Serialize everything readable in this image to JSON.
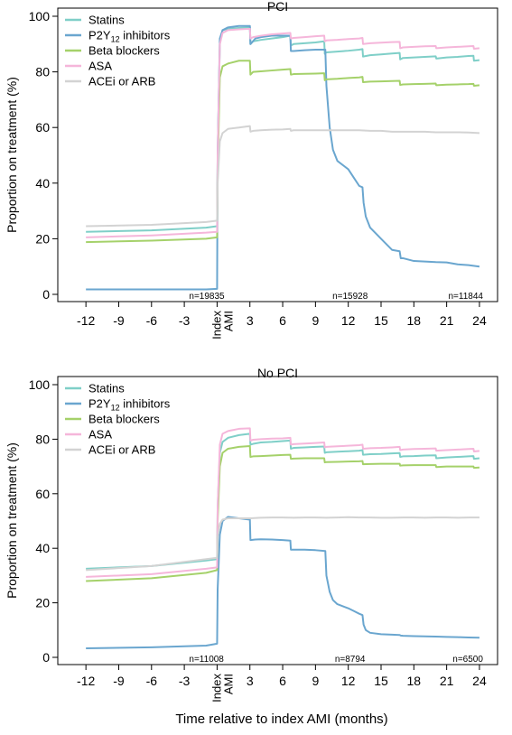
{
  "figure": {
    "xlabel": "Time relative to index AMI (months)"
  },
  "chart_data": [
    {
      "type": "line",
      "title": "PCI",
      "xlabel": "Time relative to index AMI (months)",
      "ylabel": "Proportion on treatment (%)",
      "xlim": [
        -13.5,
        24.5
      ],
      "ylim": [
        0,
        100
      ],
      "xticks": [
        -12,
        -9,
        -6,
        -3,
        0,
        3,
        6,
        9,
        12,
        15,
        18,
        21,
        24
      ],
      "xtick_labels": [
        "-12",
        "-9",
        "-6",
        "-3",
        "Index AMI",
        "3",
        "6",
        "9",
        "12",
        "15",
        "18",
        "21",
        "24"
      ],
      "yticks": [
        0,
        20,
        40,
        60,
        80,
        100
      ],
      "grid": false,
      "legend": "top-left",
      "annotations": [
        {
          "x": 0,
          "text": "n=19835"
        },
        {
          "x": 12,
          "text": "n=15928"
        },
        {
          "x": 24,
          "text": "n=11844"
        }
      ],
      "series": [
        {
          "name": "Statins",
          "color": "#7fcfc8",
          "x": [
            -12,
            -6,
            -1,
            0,
            0.05,
            0.25,
            0.5,
            1,
            2,
            3,
            3.05,
            3.3,
            4,
            5,
            6,
            6.7,
            6.75,
            7,
            8,
            9,
            9.8,
            9.85,
            10,
            11,
            12,
            13,
            13.3,
            13.35,
            14,
            15,
            16,
            16.7,
            16.75,
            17,
            18,
            19,
            20,
            20.05,
            21,
            22,
            23,
            23.45,
            23.5,
            24
          ],
          "y": [
            22.5,
            23,
            24,
            24.5,
            50,
            90,
            95,
            95.5,
            95.8,
            96,
            90,
            91,
            91.5,
            92,
            92.5,
            93,
            89.5,
            90,
            90.3,
            90.6,
            91,
            86.5,
            87,
            87.3,
            87.6,
            88,
            88.2,
            85.5,
            86,
            86.3,
            86.6,
            86.8,
            84.5,
            85,
            85.2,
            85.4,
            85.6,
            84.8,
            85.2,
            85.4,
            85.7,
            85.8,
            84,
            84.2
          ]
        },
        {
          "name": "P2Y12 inhibitors",
          "color": "#6aa6cf",
          "x": [
            -12,
            -6,
            -1,
            0,
            0.05,
            0.25,
            0.5,
            1,
            2,
            3,
            3.05,
            3.5,
            4,
            5,
            6,
            6.7,
            6.75,
            7,
            8,
            9,
            9.9,
            10,
            10.3,
            10.6,
            11,
            12,
            12.5,
            13,
            13.3,
            13.4,
            13.6,
            14,
            15,
            16,
            16.7,
            16.8,
            17,
            18,
            19,
            20,
            21,
            22,
            23,
            24
          ],
          "y": [
            1.8,
            1.8,
            1.8,
            2,
            50,
            92,
            95,
            96,
            96.5,
            96.5,
            90,
            92,
            92.5,
            93,
            93,
            93,
            87.5,
            87.5,
            87.8,
            88,
            88,
            75,
            60,
            52,
            48,
            45,
            42,
            39,
            38.5,
            33,
            28,
            24,
            20,
            16,
            15.5,
            13,
            13,
            12,
            11.8,
            11.6,
            11.5,
            10.8,
            10.5,
            10
          ]
        },
        {
          "name": "Beta blockers",
          "color": "#a5d16a",
          "x": [
            -12,
            -6,
            -1,
            0,
            0.05,
            0.25,
            0.5,
            1,
            2,
            3,
            3.05,
            3.3,
            4,
            5,
            6,
            6.7,
            6.75,
            7,
            8,
            9,
            9.8,
            9.85,
            10,
            11,
            12,
            13,
            13.3,
            13.35,
            14,
            15,
            16,
            16.7,
            16.75,
            17,
            18,
            19,
            20,
            20.05,
            21,
            22,
            23,
            23.45,
            23.5,
            24
          ],
          "y": [
            18.8,
            19.3,
            20,
            20.5,
            45,
            78,
            82,
            83,
            84,
            84,
            79,
            80,
            80.2,
            80.5,
            80.8,
            81,
            79,
            79.2,
            79.3,
            79.4,
            79.5,
            77,
            77.3,
            77.5,
            77.8,
            78,
            78.2,
            76.3,
            76.5,
            76.6,
            76.7,
            76.8,
            75.3,
            75.5,
            75.6,
            75.7,
            75.8,
            75.2,
            75.4,
            75.5,
            75.6,
            75.7,
            75,
            75.2
          ]
        },
        {
          "name": "ASA",
          "color": "#f5b6da",
          "x": [
            -12,
            -6,
            -1,
            0,
            0.05,
            0.25,
            0.5,
            1,
            2,
            3,
            3.05,
            3.3,
            4,
            5,
            6,
            6.7,
            6.75,
            7,
            8,
            9,
            9.8,
            9.85,
            10,
            11,
            12,
            13,
            13.3,
            13.35,
            14,
            15,
            16,
            16.7,
            16.75,
            17,
            18,
            19,
            20,
            20.05,
            21,
            22,
            23,
            23.45,
            23.5,
            24
          ],
          "y": [
            20.5,
            21.2,
            22.2,
            22.5,
            50,
            90,
            94,
            95,
            95.3,
            95.5,
            92,
            92.5,
            93,
            93.5,
            93.8,
            94,
            92,
            92.2,
            92.5,
            92.8,
            93,
            91,
            91.3,
            91.5,
            91.8,
            92,
            92.2,
            90,
            90.3,
            90.5,
            90.7,
            90.8,
            88.5,
            88.8,
            89,
            89.2,
            89.3,
            88.5,
            88.8,
            89,
            89.2,
            89.3,
            88.3,
            88.5
          ]
        },
        {
          "name": "ACEi or ARB",
          "color": "#d3d3d3",
          "x": [
            -12,
            -6,
            -1,
            0,
            0.05,
            0.25,
            0.5,
            1,
            2,
            3,
            3.05,
            3.3,
            4,
            5,
            6,
            6.7,
            6.75,
            7,
            8,
            9,
            10,
            11,
            12,
            13,
            14,
            15,
            16,
            17,
            18,
            19,
            20,
            21,
            22,
            23,
            24
          ],
          "y": [
            24.5,
            25,
            26,
            26.5,
            40,
            55,
            58,
            59.5,
            60,
            60.5,
            58.5,
            58.8,
            59,
            59.2,
            59.3,
            59.5,
            58.8,
            59,
            59,
            59,
            59,
            59,
            59,
            59,
            58.8,
            58.8,
            58.5,
            58.5,
            58.5,
            58.5,
            58.3,
            58.3,
            58.3,
            58.2,
            58
          ]
        }
      ]
    },
    {
      "type": "line",
      "title": "No PCI",
      "xlabel": "Time relative to index AMI (months)",
      "ylabel": "Proportion on treatment (%)",
      "xlim": [
        -13.5,
        24.5
      ],
      "ylim": [
        0,
        100
      ],
      "xticks": [
        -12,
        -9,
        -6,
        -3,
        0,
        3,
        6,
        9,
        12,
        15,
        18,
        21,
        24
      ],
      "xtick_labels": [
        "-12",
        "-9",
        "-6",
        "-3",
        "Index AMI",
        "3",
        "6",
        "9",
        "12",
        "15",
        "18",
        "21",
        "24"
      ],
      "yticks": [
        0,
        20,
        40,
        60,
        80,
        100
      ],
      "grid": false,
      "legend": "top-left",
      "annotations": [
        {
          "x": 0,
          "text": "n=11008"
        },
        {
          "x": 12,
          "text": "n=8794"
        },
        {
          "x": 24,
          "text": "n=6500"
        }
      ],
      "series": [
        {
          "name": "Statins",
          "color": "#7fcfc8",
          "x": [
            -12,
            -6,
            -1,
            0,
            0.05,
            0.25,
            0.5,
            1,
            2,
            3,
            3.05,
            3.3,
            4,
            5,
            6,
            6.7,
            6.75,
            7,
            8,
            9,
            9.8,
            9.85,
            10,
            11,
            12,
            13,
            13.3,
            13.35,
            14,
            15,
            16,
            16.7,
            16.75,
            17,
            18,
            19,
            20,
            20.05,
            21,
            22,
            23,
            23.45,
            23.5,
            24
          ],
          "y": [
            32.5,
            33.5,
            35.5,
            36,
            55,
            75,
            79,
            80.5,
            81.5,
            82,
            78,
            78.3,
            78.8,
            79,
            79.3,
            79.5,
            76.5,
            76.8,
            77,
            77.2,
            77.3,
            75,
            75.2,
            75.4,
            75.6,
            75.8,
            76,
            74.3,
            74.5,
            74.6,
            74.8,
            74.9,
            73.5,
            73.7,
            73.8,
            74,
            74.1,
            73,
            73.3,
            73.5,
            73.7,
            73.8,
            72.8,
            73
          ]
        },
        {
          "name": "P2Y12 inhibitors",
          "color": "#6aa6cf",
          "x": [
            -12,
            -6,
            -1,
            0,
            0.05,
            0.25,
            0.5,
            1,
            2,
            3,
            3.05,
            3.5,
            4,
            5,
            6,
            6.7,
            6.75,
            7,
            8,
            9,
            9.9,
            10,
            10.3,
            10.6,
            11,
            12,
            12.5,
            13,
            13.3,
            13.4,
            13.6,
            14,
            15,
            16,
            16.7,
            16.8,
            17,
            18,
            19,
            20,
            21,
            22,
            23,
            24
          ],
          "y": [
            3.3,
            3.7,
            4.3,
            5,
            25,
            45,
            50,
            51.5,
            51,
            50.5,
            43,
            43.2,
            43.3,
            43.2,
            43,
            42.8,
            39.5,
            39.5,
            39.5,
            39.3,
            39,
            30,
            24,
            21,
            19.5,
            18,
            17,
            16,
            15.5,
            12,
            10,
            9,
            8.5,
            8.3,
            8.2,
            8,
            7.9,
            7.8,
            7.7,
            7.6,
            7.5,
            7.4,
            7.3,
            7.2
          ]
        },
        {
          "name": "Beta blockers",
          "color": "#a5d16a",
          "x": [
            -12,
            -6,
            -1,
            0,
            0.05,
            0.25,
            0.5,
            1,
            2,
            3,
            3.05,
            3.3,
            4,
            5,
            6,
            6.7,
            6.75,
            7,
            8,
            9,
            9.8,
            9.85,
            10,
            11,
            12,
            13,
            13.3,
            13.35,
            14,
            15,
            16,
            16.7,
            16.75,
            17,
            18,
            19,
            20,
            20.05,
            21,
            22,
            23,
            23.45,
            23.5,
            24
          ],
          "y": [
            28,
            29,
            31,
            32,
            50,
            70,
            75,
            76.5,
            77.2,
            77.5,
            73.5,
            73.7,
            73.8,
            74,
            74.2,
            74.3,
            72.8,
            72.9,
            73,
            73,
            73,
            71.5,
            71.6,
            71.7,
            71.8,
            71.9,
            72,
            70.8,
            70.9,
            71,
            71,
            71,
            70.3,
            70.4,
            70.5,
            70.5,
            70.5,
            69.8,
            70,
            70,
            70,
            70,
            69.5,
            69.6
          ]
        },
        {
          "name": "ASA",
          "color": "#f5b6da",
          "x": [
            -12,
            -6,
            -1,
            0,
            0.05,
            0.25,
            0.5,
            1,
            2,
            3,
            3.05,
            3.3,
            4,
            5,
            6,
            6.7,
            6.75,
            7,
            8,
            9,
            9.8,
            9.85,
            10,
            11,
            12,
            13,
            13.3,
            13.35,
            14,
            15,
            16,
            16.7,
            16.75,
            17,
            18,
            19,
            20,
            20.05,
            21,
            22,
            23,
            23.45,
            23.5,
            24
          ],
          "y": [
            29.5,
            30.5,
            32.5,
            33,
            55,
            78,
            82,
            83,
            83.8,
            84,
            79.5,
            79.8,
            80,
            80.2,
            80.3,
            80.5,
            78,
            78.2,
            78.4,
            78.6,
            78.8,
            77,
            77.2,
            77.4,
            77.6,
            77.8,
            78,
            76.5,
            76.7,
            76.8,
            77,
            77.2,
            76,
            76.2,
            76.4,
            76.5,
            76.6,
            75.8,
            76,
            76.2,
            76.4,
            76.5,
            75.5,
            75.7
          ]
        },
        {
          "name": "ACEi or ARB",
          "color": "#d3d3d3",
          "x": [
            -12,
            -6,
            -1,
            0,
            0.05,
            0.25,
            0.5,
            1,
            2,
            3,
            4,
            5,
            6,
            7,
            8,
            9,
            10,
            11,
            12,
            13,
            14,
            15,
            16,
            17,
            18,
            19,
            20,
            21,
            22,
            23,
            24
          ],
          "y": [
            32,
            33.5,
            36,
            36.5,
            44,
            49,
            50.5,
            51,
            51,
            51,
            51.2,
            51.3,
            51.3,
            51.2,
            51.3,
            51.3,
            51.2,
            51.3,
            51.4,
            51.3,
            51.3,
            51.2,
            51.2,
            51.3,
            51.3,
            51.2,
            51.3,
            51.3,
            51.2,
            51.3,
            51.3
          ]
        }
      ]
    }
  ]
}
